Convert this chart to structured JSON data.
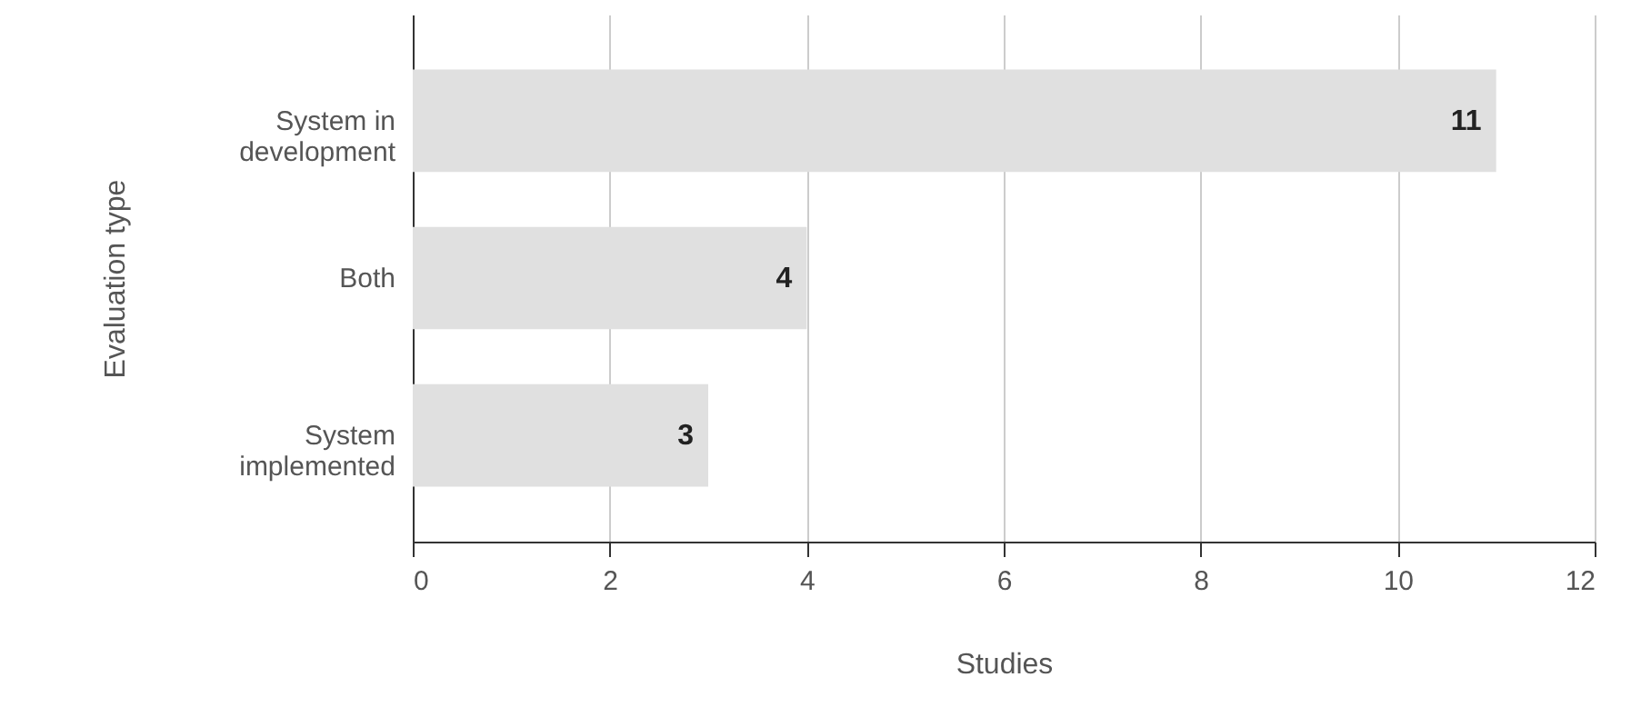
{
  "chart_data": {
    "type": "bar",
    "orientation": "horizontal",
    "xlabel": "Studies",
    "ylabel": "Evaluation type",
    "categories": [
      "System in development",
      "Both",
      "System implemented"
    ],
    "values": [
      11,
      4,
      3
    ],
    "color": "#e0e0e0",
    "xlim": [
      0,
      12
    ],
    "xticks": [
      0,
      2,
      4,
      6,
      8,
      10,
      12
    ],
    "grid": "x",
    "data_labels": true
  }
}
